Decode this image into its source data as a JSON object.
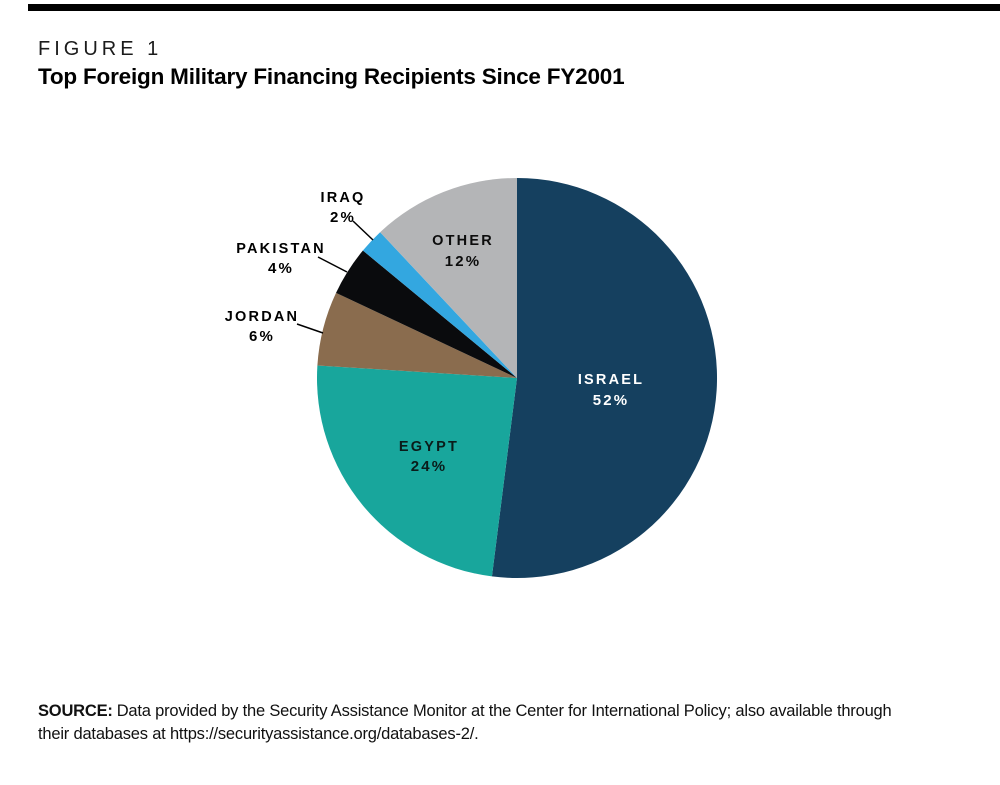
{
  "figure": {
    "kicker": "FIGURE 1",
    "title": "Top Foreign Military Financing Recipients Since FY2001"
  },
  "source": {
    "label": "SOURCE:",
    "line1": "Data provided by the Security Assistance Monitor at the Center for International Policy; also available through",
    "line2": "their databases at https://securityassistance.org/databases-2/."
  },
  "accents": {
    "top_rule_color": "#000000",
    "background": "#ffffff"
  },
  "chart_data": {
    "type": "pie",
    "title": "Top Foreign Military Financing Recipients Since FY2001",
    "start_angle_deg": 0,
    "direction": "clockwise",
    "legend_position": "none",
    "slices": [
      {
        "label": "ISRAEL",
        "value": 52,
        "pct_label": "52%",
        "color": "#15405f",
        "text_color": "#ffffff",
        "placement": "inside"
      },
      {
        "label": "EGYPT",
        "value": 24,
        "pct_label": "24%",
        "color": "#18a69c",
        "text_color": "#0a1c1a",
        "placement": "inside"
      },
      {
        "label": "JORDAN",
        "value": 6,
        "pct_label": "6%",
        "color": "#8a6c4e",
        "text_color": "#000000",
        "placement": "outside"
      },
      {
        "label": "PAKISTAN",
        "value": 4,
        "pct_label": "4%",
        "color": "#0a0b0d",
        "text_color": "#000000",
        "placement": "outside"
      },
      {
        "label": "IRAQ",
        "value": 2,
        "pct_label": "2%",
        "color": "#33a7e0",
        "text_color": "#000000",
        "placement": "outside"
      },
      {
        "label": "OTHER",
        "value": 12,
        "pct_label": "12%",
        "color": "#b4b5b7",
        "text_color": "#0c0c0c",
        "placement": "inside"
      }
    ]
  }
}
